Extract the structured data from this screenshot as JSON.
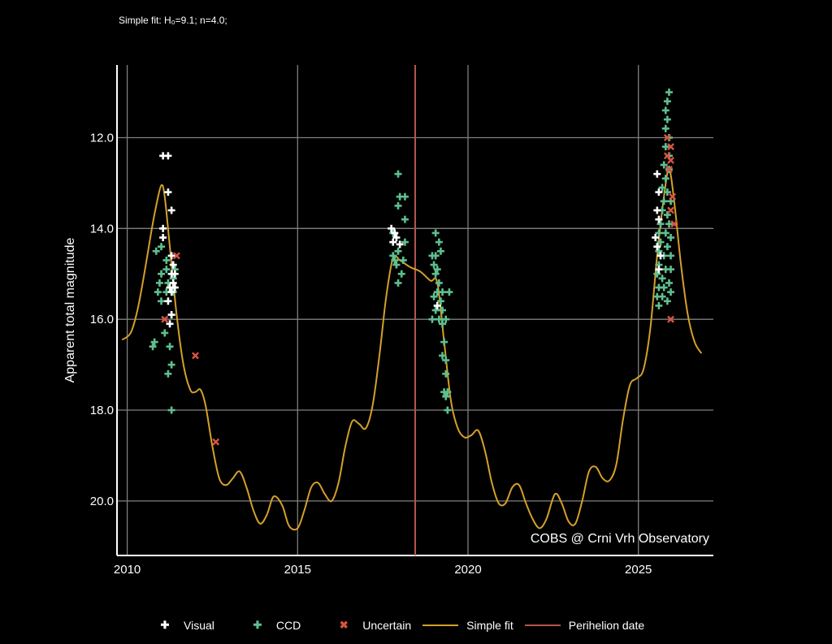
{
  "subtitle": "Simple fit: H₀=9.1; n=4.0;",
  "colors": {
    "background": "#000000",
    "grid": "#7f7f7f",
    "axis": "#ffffff",
    "visual": "#ffffff",
    "ccd": "#5fbf8f",
    "uncertain": "#d9553f",
    "fit": "#d4a02a",
    "perihelion": "#b5564a"
  },
  "chart_data": {
    "type": "scatter",
    "title": "",
    "subtitle": "Simple fit: H₀=9.1; n=4.0;",
    "xlabel": "",
    "ylabel": "Apparent total magnitude",
    "xlim": [
      2009.7,
      2027.2
    ],
    "ylim": [
      21.2,
      10.4
    ],
    "y_inverted": true,
    "grid": true,
    "x_ticks": [
      2010,
      2015,
      2020,
      2025
    ],
    "x_tick_labels": [
      "2010",
      "2015",
      "2020",
      "2025"
    ],
    "y_ticks": [
      12,
      14,
      16,
      18,
      20
    ],
    "y_tick_labels": [
      "12.0",
      "14.0",
      "16.0",
      "18.0",
      "20.0"
    ],
    "annotation": "COBS @ Crni Vrh Observatory",
    "legend_position": "bottom",
    "legend": [
      {
        "name": "Visual",
        "kind": "marker",
        "symbol": "plus"
      },
      {
        "name": "CCD",
        "kind": "marker",
        "symbol": "plus"
      },
      {
        "name": "Uncertain",
        "kind": "marker",
        "symbol": "x"
      },
      {
        "name": "Simple fit",
        "kind": "line"
      },
      {
        "name": "Perihelion date",
        "kind": "line"
      }
    ],
    "perihelion_date": 2018.45,
    "series": [
      {
        "name": "Visual",
        "symbol": "plus",
        "points": [
          [
            2011.05,
            12.4
          ],
          [
            2011.2,
            12.4
          ],
          [
            2011.2,
            13.2
          ],
          [
            2011.3,
            13.6
          ],
          [
            2011.05,
            14.0
          ],
          [
            2011.05,
            14.2
          ],
          [
            2011.3,
            14.6
          ],
          [
            2011.35,
            14.8
          ],
          [
            2011.3,
            15.0
          ],
          [
            2011.4,
            15.0
          ],
          [
            2011.35,
            15.2
          ],
          [
            2011.25,
            15.3
          ],
          [
            2011.4,
            15.3
          ],
          [
            2011.3,
            15.4
          ],
          [
            2011.2,
            15.6
          ],
          [
            2011.3,
            15.9
          ],
          [
            2011.25,
            16.1
          ],
          [
            2017.75,
            14.0
          ],
          [
            2017.85,
            14.1
          ],
          [
            2017.9,
            14.2
          ],
          [
            2017.8,
            14.3
          ],
          [
            2018.0,
            14.35
          ],
          [
            2019.1,
            15.7
          ],
          [
            2025.55,
            12.8
          ],
          [
            2025.6,
            13.2
          ],
          [
            2025.55,
            13.6
          ],
          [
            2025.6,
            13.8
          ],
          [
            2025.5,
            14.2
          ],
          [
            2025.55,
            14.4
          ],
          [
            2025.65,
            14.6
          ],
          [
            2025.6,
            14.9
          ]
        ]
      },
      {
        "name": "CCD",
        "symbol": "plus",
        "points": [
          [
            2010.85,
            14.5
          ],
          [
            2011.0,
            14.4
          ],
          [
            2011.15,
            14.7
          ],
          [
            2011.15,
            14.9
          ],
          [
            2011.4,
            14.9
          ],
          [
            2011.0,
            15.0
          ],
          [
            2011.35,
            15.1
          ],
          [
            2010.95,
            15.2
          ],
          [
            2011.2,
            15.2
          ],
          [
            2010.9,
            15.4
          ],
          [
            2011.15,
            15.4
          ],
          [
            2011.35,
            15.4
          ],
          [
            2011.0,
            15.6
          ],
          [
            2011.3,
            15.9
          ],
          [
            2011.1,
            16.3
          ],
          [
            2010.8,
            16.5
          ],
          [
            2010.75,
            16.6
          ],
          [
            2011.25,
            16.6
          ],
          [
            2011.3,
            17.0
          ],
          [
            2011.2,
            17.2
          ],
          [
            2011.3,
            18.0
          ],
          [
            2017.95,
            12.8
          ],
          [
            2018.0,
            13.3
          ],
          [
            2018.15,
            13.3
          ],
          [
            2017.95,
            13.5
          ],
          [
            2018.15,
            13.8
          ],
          [
            2017.8,
            14.1
          ],
          [
            2018.15,
            14.3
          ],
          [
            2017.95,
            14.5
          ],
          [
            2017.8,
            14.6
          ],
          [
            2017.9,
            14.8
          ],
          [
            2018.1,
            14.7
          ],
          [
            2017.85,
            14.7
          ],
          [
            2018.05,
            15.0
          ],
          [
            2017.95,
            15.2
          ],
          [
            2019.05,
            14.1
          ],
          [
            2019.15,
            14.3
          ],
          [
            2019.2,
            14.5
          ],
          [
            2018.95,
            14.6
          ],
          [
            2019.05,
            14.6
          ],
          [
            2019.0,
            14.8
          ],
          [
            2019.1,
            14.9
          ],
          [
            2019.05,
            15.0
          ],
          [
            2019.15,
            15.2
          ],
          [
            2019.1,
            15.4
          ],
          [
            2019.25,
            15.4
          ],
          [
            2019.45,
            15.4
          ],
          [
            2019.0,
            15.5
          ],
          [
            2019.2,
            15.6
          ],
          [
            2019.1,
            15.7
          ],
          [
            2019.05,
            15.8
          ],
          [
            2019.25,
            15.8
          ],
          [
            2018.95,
            16.0
          ],
          [
            2019.15,
            16.0
          ],
          [
            2019.35,
            16.0
          ],
          [
            2019.25,
            16.1
          ],
          [
            2019.3,
            16.5
          ],
          [
            2019.25,
            16.8
          ],
          [
            2019.35,
            16.9
          ],
          [
            2019.35,
            17.2
          ],
          [
            2019.3,
            17.6
          ],
          [
            2019.4,
            17.6
          ],
          [
            2019.35,
            17.7
          ],
          [
            2019.4,
            18.0
          ],
          [
            2025.9,
            11.0
          ],
          [
            2025.85,
            11.2
          ],
          [
            2025.8,
            11.4
          ],
          [
            2025.85,
            11.6
          ],
          [
            2025.8,
            11.8
          ],
          [
            2025.9,
            12.0
          ],
          [
            2025.8,
            12.2
          ],
          [
            2025.9,
            12.4
          ],
          [
            2025.75,
            12.6
          ],
          [
            2025.9,
            12.7
          ],
          [
            2025.8,
            12.9
          ],
          [
            2025.7,
            13.1
          ],
          [
            2025.85,
            13.2
          ],
          [
            2025.75,
            13.4
          ],
          [
            2025.95,
            13.4
          ],
          [
            2025.7,
            13.6
          ],
          [
            2025.85,
            13.7
          ],
          [
            2025.65,
            13.9
          ],
          [
            2025.9,
            13.9
          ],
          [
            2025.6,
            14.1
          ],
          [
            2025.8,
            14.1
          ],
          [
            2025.95,
            14.2
          ],
          [
            2025.65,
            14.3
          ],
          [
            2025.85,
            14.4
          ],
          [
            2025.6,
            14.5
          ],
          [
            2025.75,
            14.6
          ],
          [
            2025.95,
            14.6
          ],
          [
            2025.6,
            14.8
          ],
          [
            2025.8,
            14.9
          ],
          [
            2025.95,
            14.9
          ],
          [
            2025.55,
            15.0
          ],
          [
            2025.7,
            15.1
          ],
          [
            2025.9,
            15.2
          ],
          [
            2025.6,
            15.3
          ],
          [
            2025.75,
            15.3
          ],
          [
            2025.95,
            15.4
          ],
          [
            2025.55,
            15.5
          ],
          [
            2025.7,
            15.5
          ],
          [
            2025.85,
            15.6
          ],
          [
            2025.6,
            15.7
          ]
        ]
      },
      {
        "name": "Uncertain",
        "symbol": "x",
        "points": [
          [
            2011.45,
            14.6
          ],
          [
            2011.1,
            16.0
          ],
          [
            2012.0,
            16.8
          ],
          [
            2012.6,
            18.7
          ],
          [
            2025.85,
            12.0
          ],
          [
            2025.95,
            12.2
          ],
          [
            2025.85,
            12.4
          ],
          [
            2025.95,
            12.5
          ],
          [
            2025.9,
            12.7
          ],
          [
            2026.0,
            13.3
          ],
          [
            2025.95,
            13.6
          ],
          [
            2026.05,
            13.9
          ],
          [
            2025.95,
            16.0
          ]
        ]
      }
    ],
    "fit": {
      "name": "Simple fit",
      "x": [
        2009.85,
        2010.1,
        2010.3,
        2010.5,
        2010.7,
        2010.85,
        2011.0,
        2011.1,
        2011.25,
        2011.45,
        2011.65,
        2011.85,
        2012.0,
        2012.15,
        2012.3,
        2012.5,
        2012.7,
        2012.9,
        2013.1,
        2013.3,
        2013.5,
        2013.7,
        2013.9,
        2014.1,
        2014.3,
        2014.55,
        2014.75,
        2015.0,
        2015.2,
        2015.4,
        2015.6,
        2015.8,
        2016.0,
        2016.2,
        2016.4,
        2016.6,
        2016.8,
        2017.0,
        2017.2,
        2017.4,
        2017.6,
        2017.8,
        2018.0,
        2018.3,
        2018.6,
        2018.9,
        2019.1,
        2019.3,
        2019.5,
        2019.7,
        2019.9,
        2020.1,
        2020.3,
        2020.5,
        2020.7,
        2020.9,
        2021.1,
        2021.3,
        2021.5,
        2021.7,
        2021.9,
        2022.1,
        2022.3,
        2022.55,
        2022.75,
        2022.95,
        2023.15,
        2023.35,
        2023.55,
        2023.75,
        2023.95,
        2024.15,
        2024.35,
        2024.55,
        2024.75,
        2024.95,
        2025.15,
        2025.35,
        2025.55,
        2025.75,
        2025.9,
        2026.05,
        2026.25,
        2026.45,
        2026.65,
        2026.85
      ],
      "y": [
        16.45,
        16.3,
        15.8,
        15.0,
        14.1,
        13.5,
        13.05,
        13.3,
        14.4,
        15.9,
        17.0,
        17.55,
        17.6,
        17.55,
        17.9,
        18.8,
        19.5,
        19.65,
        19.5,
        19.35,
        19.7,
        20.2,
        20.5,
        20.3,
        19.9,
        20.1,
        20.55,
        20.6,
        20.2,
        19.7,
        19.6,
        19.85,
        20.0,
        19.6,
        18.8,
        18.25,
        18.3,
        18.4,
        17.9,
        16.8,
        15.5,
        14.65,
        14.7,
        14.85,
        14.95,
        15.15,
        15.2,
        16.5,
        17.8,
        18.4,
        18.6,
        18.55,
        18.45,
        18.9,
        19.6,
        20.05,
        20.05,
        19.7,
        19.65,
        20.05,
        20.4,
        20.6,
        20.4,
        19.85,
        20.05,
        20.45,
        20.5,
        20.0,
        19.35,
        19.25,
        19.5,
        19.55,
        19.2,
        18.2,
        17.45,
        17.3,
        17.1,
        16.2,
        14.6,
        13.3,
        12.7,
        13.4,
        14.8,
        15.9,
        16.5,
        16.75
      ]
    }
  }
}
